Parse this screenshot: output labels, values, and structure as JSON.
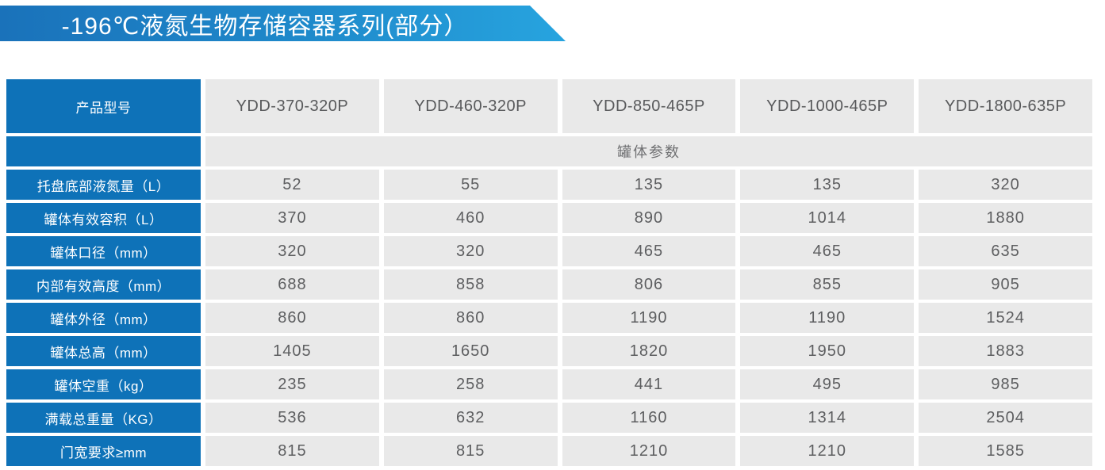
{
  "banner": {
    "title": "-196℃液氮生物存储容器系列(部分）",
    "gradient_left": "#1a72ba",
    "gradient_right": "#27a4df"
  },
  "colors": {
    "label_blue": "#0e72b8",
    "cell_gray": "#e9e9e9",
    "value_text": "#5d5e60",
    "banner_text": "#ffffff"
  },
  "table": {
    "corner_label": "产品型号",
    "section_label": "罐体参数",
    "models": [
      "YDD-370-320P",
      "YDD-460-320P",
      "YDD-850-465P",
      "YDD-1000-465P",
      "YDD-1800-635P"
    ],
    "rows": [
      {
        "label": "托盘底部液氮量（L）",
        "values": [
          "52",
          "55",
          "135",
          "135",
          "320"
        ]
      },
      {
        "label": "罐体有效容积（L）",
        "values": [
          "370",
          "460",
          "890",
          "1014",
          "1880"
        ]
      },
      {
        "label": "罐体口径（mm）",
        "values": [
          "320",
          "320",
          "465",
          "465",
          "635"
        ]
      },
      {
        "label": "内部有效高度（mm）",
        "values": [
          "688",
          "858",
          "806",
          "855",
          "905"
        ]
      },
      {
        "label": "罐体外径（mm）",
        "values": [
          "860",
          "860",
          "1190",
          "1190",
          "1524"
        ]
      },
      {
        "label": "罐体总高（mm）",
        "values": [
          "1405",
          "1650",
          "1820",
          "1950",
          "1883"
        ]
      },
      {
        "label": "罐体空重（kg）",
        "values": [
          "235",
          "258",
          "441",
          "495",
          "985"
        ]
      },
      {
        "label": "满载总重量（KG）",
        "values": [
          "536",
          "632",
          "1160",
          "1314",
          "2504"
        ]
      },
      {
        "label": "门宽要求≥mm",
        "values": [
          "815",
          "815",
          "1210",
          "1210",
          "1585"
        ]
      }
    ]
  }
}
